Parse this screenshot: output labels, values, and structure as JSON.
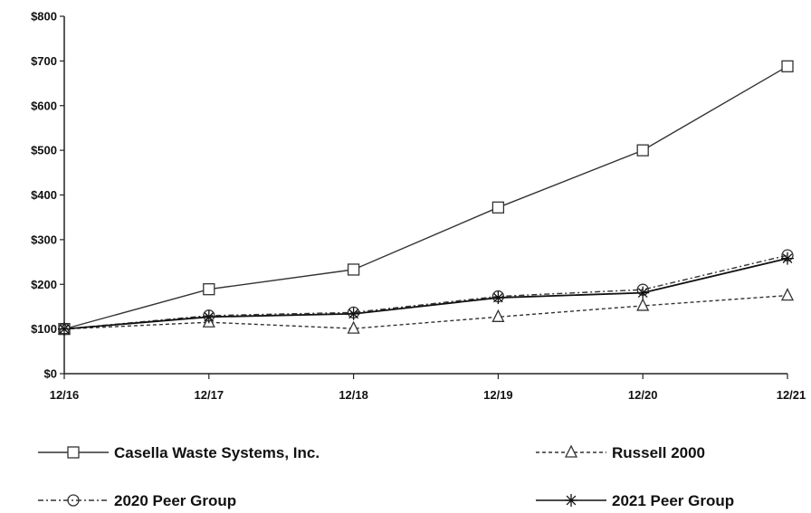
{
  "chart_data": {
    "type": "line",
    "title": "",
    "xlabel": "",
    "ylabel": "",
    "categories": [
      "12/16",
      "12/17",
      "12/18",
      "12/19",
      "12/20",
      "12/21"
    ],
    "y_ticks": [
      "$0",
      "$100",
      "$200",
      "$300",
      "$400",
      "$500",
      "$600",
      "$700",
      "$800"
    ],
    "ylim": [
      0,
      800
    ],
    "grid": false,
    "legend_position": "bottom",
    "series": [
      {
        "name": "Casella Waste Systems, Inc.",
        "marker": "square",
        "line_style": "solid",
        "color": "#333333",
        "values": [
          100,
          189,
          233,
          372,
          500,
          688
        ]
      },
      {
        "name": "Russell 2000",
        "marker": "triangle",
        "line_style": "dashed",
        "color": "#333333",
        "values": [
          100,
          115,
          101,
          127,
          152,
          175
        ]
      },
      {
        "name": "2020 Peer Group",
        "marker": "circle",
        "line_style": "dash-dot",
        "color": "#333333",
        "values": [
          100,
          130,
          137,
          173,
          188,
          265
        ]
      },
      {
        "name": "2021 Peer Group",
        "marker": "asterisk",
        "line_style": "solid",
        "color": "#111111",
        "values": [
          100,
          127,
          134,
          170,
          181,
          258
        ]
      }
    ]
  }
}
